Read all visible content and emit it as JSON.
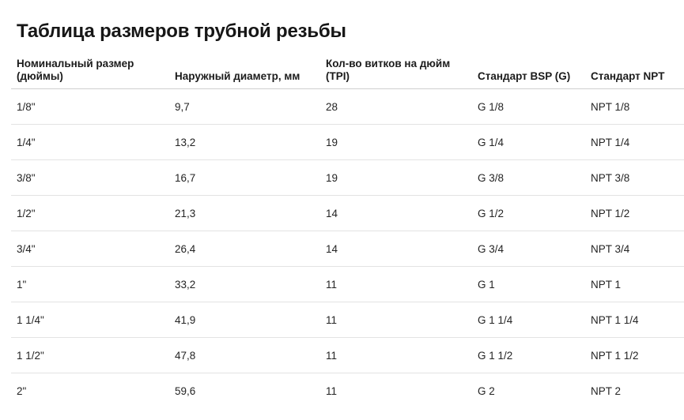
{
  "title": "Таблица размеров трубной резьбы",
  "table": {
    "headers": [
      "Номинальный размер (дюймы)",
      "Наружный диаметр, мм",
      "Кол-во витков на дюйм (TPI)",
      "Стандарт BSP (G)",
      "Стандарт NPT"
    ],
    "rows": [
      [
        "1/8\"",
        "9,7",
        "28",
        "G 1/8",
        "NPT 1/8"
      ],
      [
        "1/4\"",
        "13,2",
        "19",
        "G 1/4",
        "NPT 1/4"
      ],
      [
        "3/8\"",
        "16,7",
        "19",
        "G 3/8",
        "NPT 3/8"
      ],
      [
        "1/2\"",
        "21,3",
        "14",
        "G 1/2",
        "NPT 1/2"
      ],
      [
        "3/4\"",
        "26,4",
        "14",
        "G 3/4",
        "NPT 3/4"
      ],
      [
        "1\"",
        "33,2",
        "11",
        "G 1",
        "NPT 1"
      ],
      [
        "1 1/4\"",
        "41,9",
        "11",
        "G 1 1/4",
        "NPT 1 1/4"
      ],
      [
        "1 1/2\"",
        "47,8",
        "11",
        "G 1 1/2",
        "NPT 1 1/2"
      ],
      [
        "2\"",
        "59,6",
        "11",
        "G 2",
        "NPT 2"
      ]
    ]
  }
}
